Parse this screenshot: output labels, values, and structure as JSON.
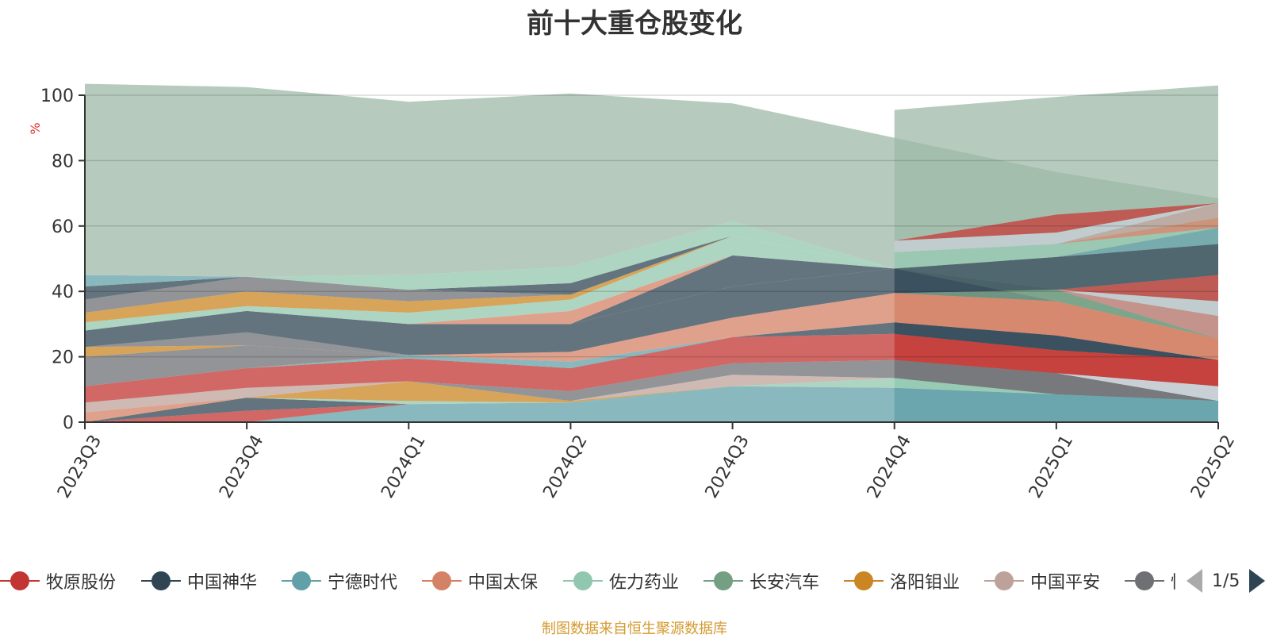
{
  "title": "前十大重仓股变化",
  "source_note": "制图数据来自恒生聚源数据库",
  "legend_page": "1/5",
  "legend": [
    {
      "name": "牧原股份",
      "color": "#c23531"
    },
    {
      "name": "中国神华",
      "color": "#2f4554"
    },
    {
      "name": "宁德时代",
      "color": "#61a0a8"
    },
    {
      "name": "中国太保",
      "color": "#d48265"
    },
    {
      "name": "佐力药业",
      "color": "#91c7ae"
    },
    {
      "name": "长安汽车",
      "color": "#749f83"
    },
    {
      "name": "洛阳钼业",
      "color": "#ca8622"
    },
    {
      "name": "中国平安",
      "color": "#bda29a"
    },
    {
      "name": "恒",
      "color": "#6e7074"
    }
  ],
  "chart_data": {
    "type": "area",
    "title": "前十大重仓股变化",
    "ylabel": "%",
    "xlabel": "",
    "ylim": [
      0,
      100
    ],
    "yticks": [
      0,
      20,
      40,
      60,
      80,
      100
    ],
    "grid": true,
    "stacked": true,
    "categories": [
      "2023Q3",
      "2023Q4",
      "2024Q1",
      "2024Q2",
      "2024Q3",
      "2024Q4",
      "2025Q1",
      "2025Q2"
    ],
    "layers": [
      {
        "color": "#61a0a8",
        "values": [
          0,
          0,
          5.5,
          6,
          11,
          10.5,
          8.5,
          6.5
        ]
      },
      {
        "color": "#c23531",
        "values": [
          0,
          3.5,
          0,
          0,
          0,
          0,
          0,
          0
        ]
      },
      {
        "color": "#2f4554",
        "values": [
          0,
          4,
          0,
          0,
          0,
          0,
          0,
          0
        ]
      },
      {
        "color": "#91c7ae",
        "values": [
          0,
          0,
          1,
          0,
          0,
          3,
          0,
          0
        ]
      },
      {
        "color": "#ca8622",
        "values": [
          0,
          0,
          6,
          0.5,
          0,
          0,
          0,
          0
        ]
      },
      {
        "color": "#d48265",
        "values": [
          3,
          0,
          0,
          0,
          0,
          0,
          0,
          0
        ]
      },
      {
        "color": "#bda29a",
        "values": [
          3,
          3,
          0,
          0,
          3.5,
          0,
          0,
          0
        ]
      },
      {
        "color": "#6e7074",
        "values": [
          0,
          0,
          0,
          3,
          3.5,
          5.5,
          6.5,
          0
        ]
      },
      {
        "color": "#c4ccd3",
        "values": [
          0,
          0,
          0,
          0,
          0,
          0,
          0,
          4.5
        ]
      },
      {
        "color": "#c23531",
        "values": [
          5,
          6,
          7,
          7,
          8,
          8,
          7,
          8
        ]
      },
      {
        "color": "#61a0a8",
        "values": [
          0,
          0,
          1,
          2,
          0,
          0,
          0,
          0
        ]
      },
      {
        "color": "#6e7074",
        "values": [
          9,
          7,
          0,
          0,
          0,
          0,
          0,
          0
        ]
      },
      {
        "color": "#91c7ae",
        "values": [
          0,
          0,
          0,
          0,
          0,
          0,
          0,
          0
        ]
      },
      {
        "color": "#2f4554",
        "values": [
          0,
          0,
          0,
          0,
          0,
          3.5,
          4.5,
          0
        ]
      },
      {
        "color": "#d48265",
        "values": [
          0,
          0,
          0,
          3,
          6,
          9,
          10.5,
          6.5
        ]
      },
      {
        "color": "#c23531",
        "values": [
          0,
          0,
          0,
          0,
          0,
          0,
          0,
          0
        ]
      },
      {
        "color": "#2f4554",
        "values": [
          0,
          0,
          0,
          0,
          0,
          0,
          0,
          0
        ]
      },
      {
        "color": "#ca8622",
        "values": [
          3,
          0,
          0,
          0,
          0,
          0,
          0,
          0
        ]
      },
      {
        "color": "#6e7074",
        "values": [
          0,
          4,
          0,
          0,
          0,
          0,
          0,
          0
        ]
      },
      {
        "color": "#2f4554",
        "values": [
          5,
          6.5,
          9.5,
          8.5,
          9.5,
          7.5,
          0,
          0
        ]
      },
      {
        "color": "#749f83",
        "values": [
          0,
          0,
          0,
          0,
          0,
          0,
          3.5,
          0
        ]
      },
      {
        "color": "#c23531",
        "values": [
          0,
          0,
          0,
          0,
          0,
          0,
          0,
          7
        ]
      },
      {
        "color": "#6e7074",
        "values": [
          0,
          0,
          0,
          0,
          0,
          0,
          0,
          0
        ]
      },
      {
        "color": "#2f4554",
        "values": [
          0,
          0,
          0,
          0,
          9.5,
          0,
          0,
          0
        ]
      },
      {
        "color": "#d48265",
        "values": [
          0,
          0,
          0,
          4,
          0,
          0,
          0,
          0
        ]
      },
      {
        "color": "#91c7ae",
        "values": [
          2.5,
          1.5,
          3.5,
          3.5,
          6,
          0,
          0,
          0
        ]
      },
      {
        "color": "#ca8622",
        "values": [
          3,
          4.5,
          3.5,
          1.5,
          0,
          0,
          0,
          0
        ]
      },
      {
        "color": "#6e7074",
        "values": [
          4,
          4.5,
          3.5,
          0,
          0,
          0,
          0,
          0
        ]
      },
      {
        "color": "#2f4554",
        "values": [
          4,
          0,
          0,
          0,
          0,
          0,
          0,
          0
        ]
      },
      {
        "color": "#61a0a8",
        "values": [
          3.5,
          0,
          0,
          0,
          0,
          0,
          0,
          0
        ]
      },
      {
        "color": "#2f4554",
        "values": [
          0,
          0,
          0,
          3.5,
          0,
          0,
          0,
          0
        ]
      },
      {
        "color": "#91c7ae",
        "values": [
          0,
          0,
          4.5,
          5,
          4.5,
          0,
          0,
          0
        ]
      },
      {
        "color": "#9eb9a8",
        "values": [
          58.5,
          58,
          53,
          53,
          36,
          40,
          36,
          36
        ]
      }
    ],
    "step": {
      "x_from": "2024Q4",
      "x_to": "2025Q2",
      "layers": [
        {
          "color": "#61a0a8",
          "values": [
            10.5,
            8.5,
            6.5
          ]
        },
        {
          "color": "#91c7ae",
          "values": [
            3,
            0,
            0
          ]
        },
        {
          "color": "#6e7074",
          "values": [
            5.5,
            6.5,
            0
          ]
        },
        {
          "color": "#c4ccd3",
          "values": [
            0,
            0,
            4.5
          ]
        },
        {
          "color": "#c23531",
          "values": [
            8,
            7,
            8
          ]
        },
        {
          "color": "#2f4554",
          "values": [
            3.5,
            4.5,
            0
          ]
        },
        {
          "color": "#d48265",
          "values": [
            9,
            10.5,
            6.5
          ]
        },
        {
          "color": "#749f83",
          "values": [
            0,
            3.5,
            0
          ]
        },
        {
          "color": "#bda29a",
          "values": [
            0,
            0,
            7
          ]
        },
        {
          "color": "#c4ccd3",
          "values": [
            0,
            0,
            4.5
          ]
        },
        {
          "color": "#c23531",
          "values": [
            0,
            0,
            8
          ]
        },
        {
          "color": "#2f4554",
          "values": [
            7.5,
            10,
            9.5
          ]
        },
        {
          "color": "#61a0a8",
          "values": [
            0,
            0,
            5
          ]
        },
        {
          "color": "#91c7ae",
          "values": [
            5,
            4,
            0
          ]
        },
        {
          "color": "#d48265",
          "values": [
            0,
            0,
            3
          ]
        },
        {
          "color": "#bda29a",
          "values": [
            0,
            0,
            4.5
          ]
        },
        {
          "color": "#c4ccd3",
          "values": [
            3.5,
            3.5,
            0
          ]
        },
        {
          "color": "#c23531",
          "values": [
            0,
            5.5,
            0
          ]
        },
        {
          "color": "#9eb9a8",
          "values": [
            40,
            36,
            36
          ]
        }
      ]
    }
  }
}
